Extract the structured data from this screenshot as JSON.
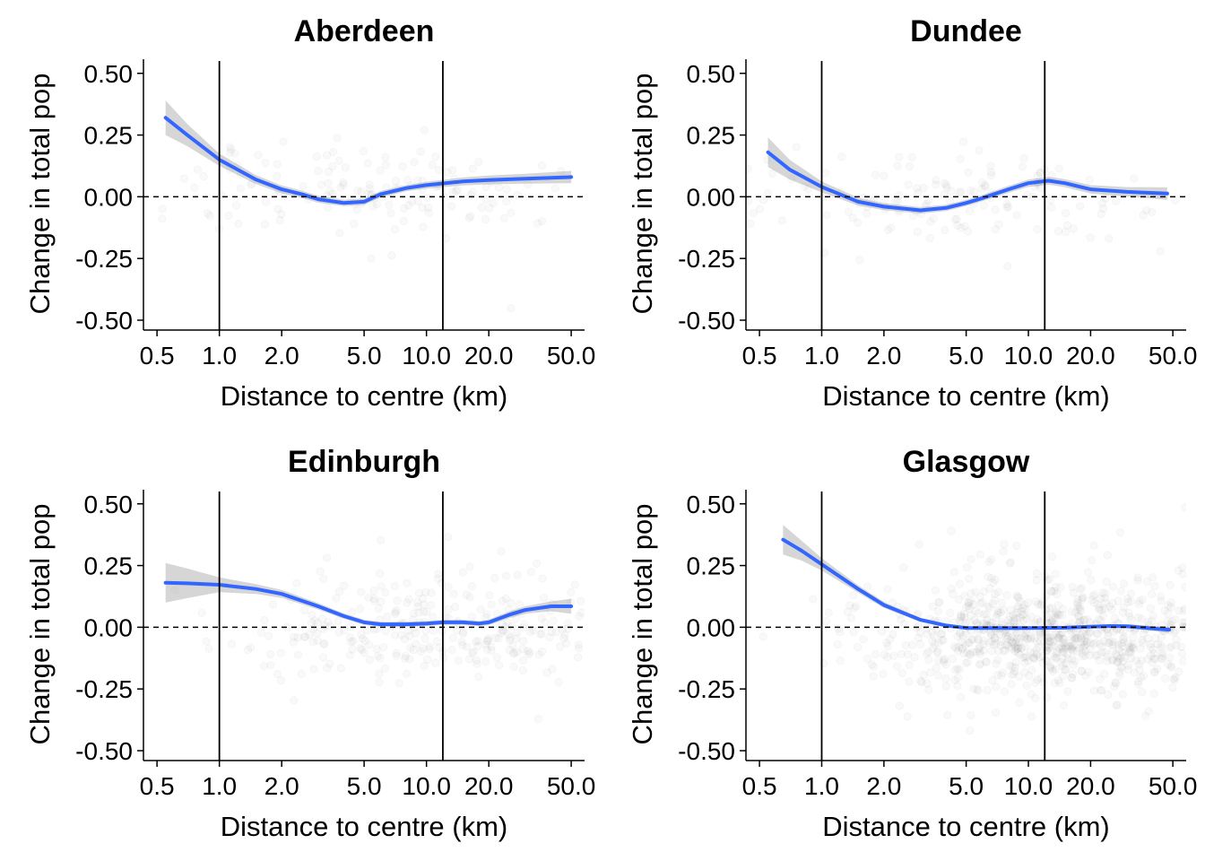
{
  "chart_data": [
    {
      "type": "scatter",
      "title": "Aberdeen",
      "xlabel": "Distance to centre (km)",
      "ylabel": "Change in total pop",
      "x_scale": "log",
      "xlim": [
        0.43,
        58
      ],
      "ylim": [
        -0.54,
        0.55
      ],
      "x_ticks": [
        0.5,
        1.0,
        2.0,
        5.0,
        10.0,
        20.0,
        50.0
      ],
      "x_tick_labels": [
        "0.5",
        "1.0",
        "2.0",
        "5.0",
        "10.0",
        "20.0",
        "50.0"
      ],
      "y_ticks": [
        0.5,
        0.25,
        0,
        -0.25,
        -0.5
      ],
      "y_tick_labels": [
        "0.50",
        "0.25",
        "0.00",
        "-0.25",
        "-0.50"
      ],
      "vlines": [
        1.0,
        12.0
      ],
      "hline": 0,
      "smooth": {
        "x": [
          0.55,
          0.7,
          1.0,
          1.5,
          2.0,
          2.5,
          3.0,
          4.0,
          5.0,
          6.0,
          8.0,
          10.0,
          15.0,
          20.0,
          30.0,
          50.0
        ],
        "y": [
          0.32,
          0.25,
          0.15,
          0.07,
          0.03,
          0.01,
          -0.01,
          -0.025,
          -0.02,
          0.01,
          0.035,
          0.047,
          0.062,
          0.068,
          0.073,
          0.08
        ],
        "ci_half_width": [
          0.07,
          0.045,
          0.025,
          0.018,
          0.016,
          0.015,
          0.014,
          0.013,
          0.013,
          0.013,
          0.013,
          0.014,
          0.016,
          0.018,
          0.02,
          0.025
        ]
      },
      "point_cloud": {
        "center_x": 5.0,
        "spread_log10": 0.55,
        "center_y": 0.02,
        "spread_y": 0.1,
        "count": 160
      }
    },
    {
      "type": "scatter",
      "title": "Dundee",
      "xlabel": "Distance to centre (km)",
      "ylabel": "Change in total pop",
      "x_scale": "log",
      "xlim": [
        0.43,
        58
      ],
      "ylim": [
        -0.54,
        0.55
      ],
      "x_ticks": [
        0.5,
        1.0,
        2.0,
        5.0,
        10.0,
        20.0,
        50.0
      ],
      "x_tick_labels": [
        "0.5",
        "1.0",
        "2.0",
        "5.0",
        "10.0",
        "20.0",
        "50.0"
      ],
      "y_ticks": [
        0.5,
        0.25,
        0,
        -0.25,
        -0.5
      ],
      "y_tick_labels": [
        "0.50",
        "0.25",
        "0.00",
        "-0.25",
        "-0.50"
      ],
      "vlines": [
        1.0,
        12.0
      ],
      "hline": 0,
      "smooth": {
        "x": [
          0.55,
          0.7,
          1.0,
          1.5,
          2.0,
          3.0,
          4.0,
          5.0,
          6.0,
          8.0,
          10.0,
          12.5,
          15.0,
          20.0,
          30.0,
          47.0
        ],
        "y": [
          0.18,
          0.11,
          0.04,
          -0.02,
          -0.04,
          -0.055,
          -0.045,
          -0.025,
          -0.005,
          0.03,
          0.055,
          0.065,
          0.055,
          0.03,
          0.02,
          0.013
        ],
        "ci_half_width": [
          0.06,
          0.04,
          0.022,
          0.016,
          0.014,
          0.013,
          0.013,
          0.013,
          0.013,
          0.014,
          0.015,
          0.016,
          0.016,
          0.017,
          0.019,
          0.025
        ]
      },
      "point_cloud": {
        "center_x": 4.0,
        "spread_log10": 0.55,
        "center_y": -0.01,
        "spread_y": 0.1,
        "count": 150
      }
    },
    {
      "type": "scatter",
      "title": "Edinburgh",
      "xlabel": "Distance to centre (km)",
      "ylabel": "Change in total pop",
      "x_scale": "log",
      "xlim": [
        0.43,
        58
      ],
      "ylim": [
        -0.54,
        0.55
      ],
      "x_ticks": [
        0.5,
        1.0,
        2.0,
        5.0,
        10.0,
        20.0,
        50.0
      ],
      "x_tick_labels": [
        "0.5",
        "1.0",
        "2.0",
        "5.0",
        "10.0",
        "20.0",
        "50.0"
      ],
      "y_ticks": [
        0.5,
        0.25,
        0,
        -0.25,
        -0.5
      ],
      "y_tick_labels": [
        "0.50",
        "0.25",
        "0.00",
        "-0.25",
        "-0.50"
      ],
      "vlines": [
        1.0,
        12.0
      ],
      "hline": 0,
      "smooth": {
        "x": [
          0.55,
          0.7,
          1.0,
          1.5,
          2.0,
          3.0,
          4.0,
          5.0,
          6.0,
          8.0,
          10.0,
          12.0,
          15.0,
          18.0,
          20.0,
          25.0,
          30.0,
          40.0,
          50.0
        ],
        "y": [
          0.18,
          0.178,
          0.172,
          0.155,
          0.135,
          0.085,
          0.045,
          0.02,
          0.012,
          0.012,
          0.015,
          0.02,
          0.02,
          0.015,
          0.02,
          0.05,
          0.07,
          0.085,
          0.085
        ],
        "ci_half_width": [
          0.08,
          0.06,
          0.03,
          0.02,
          0.016,
          0.013,
          0.011,
          0.01,
          0.01,
          0.01,
          0.01,
          0.01,
          0.01,
          0.01,
          0.011,
          0.013,
          0.015,
          0.02,
          0.03
        ]
      },
      "point_cloud": {
        "center_x": 11.0,
        "spread_log10": 0.5,
        "center_y": 0.0,
        "spread_y": 0.1,
        "count": 320
      }
    },
    {
      "type": "scatter",
      "title": "Glasgow",
      "xlabel": "Distance to centre (km)",
      "ylabel": "Change in total pop",
      "x_scale": "log",
      "xlim": [
        0.43,
        58
      ],
      "ylim": [
        -0.54,
        0.55
      ],
      "x_ticks": [
        0.5,
        1.0,
        2.0,
        5.0,
        10.0,
        20.0,
        50.0
      ],
      "x_tick_labels": [
        "0.5",
        "1.0",
        "2.0",
        "5.0",
        "10.0",
        "20.0",
        "50.0"
      ],
      "y_ticks": [
        0.5,
        0.25,
        0,
        -0.25,
        -0.5
      ],
      "y_tick_labels": [
        "0.50",
        "0.25",
        "0.00",
        "-0.25",
        "-0.50"
      ],
      "vlines": [
        1.0,
        12.0
      ],
      "hline": 0,
      "smooth": {
        "x": [
          0.65,
          0.8,
          1.0,
          1.5,
          2.0,
          3.0,
          4.0,
          5.0,
          7.0,
          10.0,
          15.0,
          20.0,
          25.0,
          30.0,
          40.0,
          48.0
        ],
        "y": [
          0.355,
          0.31,
          0.255,
          0.155,
          0.09,
          0.03,
          0.007,
          -0.003,
          -0.003,
          -0.003,
          -0.002,
          0.002,
          0.005,
          0.004,
          -0.005,
          -0.01
        ],
        "ci_half_width": [
          0.06,
          0.04,
          0.025,
          0.015,
          0.012,
          0.008,
          0.007,
          0.006,
          0.006,
          0.006,
          0.006,
          0.006,
          0.007,
          0.008,
          0.01,
          0.013
        ]
      },
      "point_cloud": {
        "center_x": 13.0,
        "spread_log10": 0.45,
        "center_y": -0.03,
        "spread_y": 0.12,
        "count": 900
      }
    }
  ],
  "colors": {
    "smooth_line": "#3366FF",
    "ci_band": "#999999",
    "points": "#000000",
    "axis": "#000000"
  }
}
